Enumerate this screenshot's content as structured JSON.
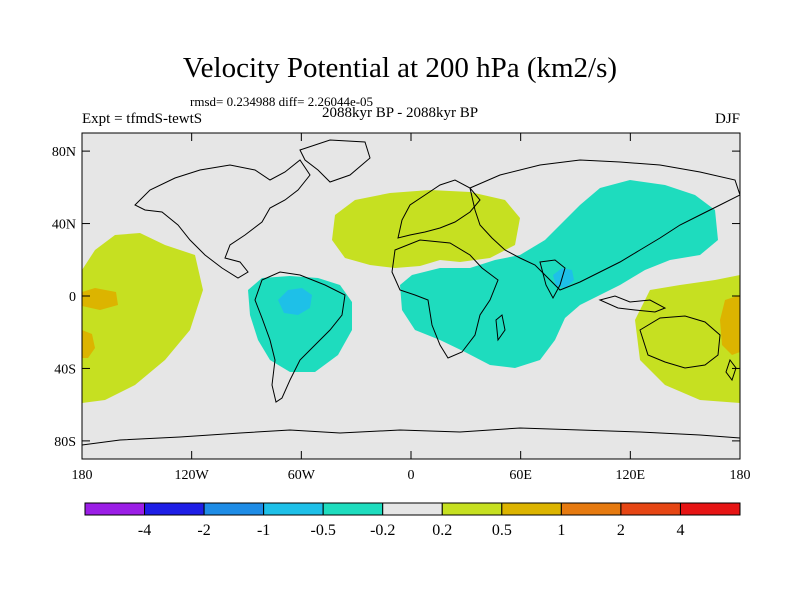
{
  "title": "Velocity Potential at 200 hPa (km2/s)",
  "stats_line": "rmsd= 0.234988 diff= 2.26044e-05",
  "experiment": "Expt = tfmdS-tewtS",
  "period": "2088kyr BP - 2088kyr BP",
  "season": "DJF",
  "colors": {
    "neutral": "#e6e6e6",
    "pos_02": "#c6e021",
    "pos_05": "#dcb400",
    "pos_1": "#e67a10",
    "neg_02": "#1edcbe",
    "neg_05": "#1ec0e8",
    "neg_1": "#1e8ce6"
  },
  "y_axis": {
    "ticks": [
      {
        "value": 80,
        "label": "80N"
      },
      {
        "value": 40,
        "label": "40N"
      },
      {
        "value": 0,
        "label": "0"
      },
      {
        "value": -40,
        "label": "40S"
      },
      {
        "value": -80,
        "label": "80S"
      }
    ]
  },
  "x_axis": {
    "ticks": [
      {
        "value": -180,
        "label": "180"
      },
      {
        "value": -120,
        "label": "120W"
      },
      {
        "value": -60,
        "label": "60W"
      },
      {
        "value": 0,
        "label": "0"
      },
      {
        "value": 60,
        "label": "60E"
      },
      {
        "value": 120,
        "label": "120E"
      },
      {
        "value": 180,
        "label": "180"
      }
    ]
  },
  "colorbar": {
    "colors": [
      "#9b1ee6",
      "#1e1ee6",
      "#1e8ce6",
      "#1ec0e8",
      "#1edcbe",
      "#e6e6e6",
      "#c6e021",
      "#dcb400",
      "#e67a10",
      "#e64614",
      "#e61414"
    ],
    "labels": [
      "-4",
      "-2",
      "-1",
      "-0.5",
      "-0.2",
      "0.2",
      "0.5",
      "1",
      "2",
      "4"
    ]
  }
}
